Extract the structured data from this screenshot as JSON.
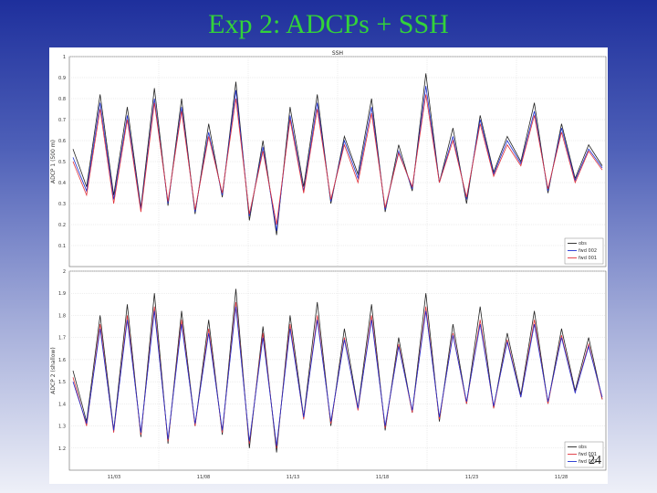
{
  "slide": {
    "title": "Exp 2: ADCPs + SSH",
    "page_number": "24"
  },
  "colors": {
    "title": "#33d23a",
    "obs": "#222222",
    "fwd002": "#1d2fd1",
    "fwd001": "#e0323a",
    "grid": "#dddddd"
  },
  "chart_data": [
    {
      "type": "line",
      "title": "SSH",
      "ylabel": "ADCP 1 (500 m)",
      "ylim": [
        0,
        1
      ],
      "yticks": [
        "0.1",
        "0.2",
        "0.3",
        "0.4",
        "0.5",
        "0.6",
        "0.7",
        "0.8",
        "0.9",
        "1"
      ],
      "xticks": [],
      "grid": true,
      "legend": "bottom-right",
      "legend_entries": [
        "obs",
        "fwd 002",
        "fwd 001"
      ],
      "series": [
        {
          "name": "obs",
          "color": "#222222",
          "values": [
            0.56,
            0.38,
            0.82,
            0.34,
            0.76,
            0.28,
            0.85,
            0.29,
            0.8,
            0.25,
            0.68,
            0.33,
            0.88,
            0.22,
            0.6,
            0.15,
            0.76,
            0.38,
            0.82,
            0.3,
            0.62,
            0.44,
            0.8,
            0.26,
            0.58,
            0.36,
            0.92,
            0.4,
            0.66,
            0.3,
            0.72,
            0.45,
            0.62,
            0.5,
            0.78,
            0.35,
            0.68,
            0.42,
            0.58,
            0.48
          ]
        },
        {
          "name": "fwd 002",
          "color": "#1d2fd1",
          "values": [
            0.52,
            0.36,
            0.78,
            0.32,
            0.72,
            0.27,
            0.8,
            0.3,
            0.76,
            0.26,
            0.64,
            0.34,
            0.84,
            0.24,
            0.57,
            0.17,
            0.72,
            0.36,
            0.78,
            0.31,
            0.6,
            0.42,
            0.76,
            0.27,
            0.55,
            0.37,
            0.86,
            0.4,
            0.62,
            0.32,
            0.7,
            0.44,
            0.6,
            0.49,
            0.74,
            0.36,
            0.66,
            0.41,
            0.56,
            0.47
          ]
        },
        {
          "name": "fwd 001",
          "color": "#e0323a",
          "values": [
            0.5,
            0.34,
            0.75,
            0.3,
            0.7,
            0.26,
            0.78,
            0.31,
            0.74,
            0.27,
            0.62,
            0.35,
            0.8,
            0.25,
            0.55,
            0.2,
            0.7,
            0.35,
            0.75,
            0.32,
            0.58,
            0.4,
            0.73,
            0.28,
            0.54,
            0.38,
            0.82,
            0.4,
            0.6,
            0.33,
            0.68,
            0.43,
            0.58,
            0.48,
            0.72,
            0.37,
            0.64,
            0.4,
            0.55,
            0.46
          ]
        }
      ]
    },
    {
      "type": "line",
      "title": "",
      "ylabel": "ADCP 2 (shallow)",
      "ylim": [
        1.1,
        2
      ],
      "yticks": [
        "1.2",
        "1.3",
        "1.4",
        "1.5",
        "1.6",
        "1.7",
        "1.8",
        "1.9",
        "2"
      ],
      "xticks": [
        "11/03",
        "11/08",
        "11/13",
        "11/18",
        "11/23",
        "11/28"
      ],
      "grid": true,
      "legend": "bottom-right",
      "legend_entries": [
        "obs",
        "fwd 001",
        "fwd 002"
      ],
      "series": [
        {
          "name": "obs",
          "color": "#222222",
          "values": [
            1.55,
            1.32,
            1.8,
            1.28,
            1.85,
            1.25,
            1.9,
            1.22,
            1.82,
            1.3,
            1.78,
            1.26,
            1.92,
            1.2,
            1.75,
            1.18,
            1.8,
            1.34,
            1.86,
            1.3,
            1.74,
            1.38,
            1.85,
            1.28,
            1.7,
            1.36,
            1.9,
            1.32,
            1.76,
            1.4,
            1.84,
            1.38,
            1.72,
            1.44,
            1.82,
            1.4,
            1.74,
            1.46,
            1.7,
            1.42
          ]
        },
        {
          "name": "fwd 001",
          "color": "#e0323a",
          "values": [
            1.52,
            1.3,
            1.76,
            1.27,
            1.8,
            1.26,
            1.84,
            1.23,
            1.78,
            1.3,
            1.74,
            1.27,
            1.86,
            1.22,
            1.72,
            1.2,
            1.76,
            1.33,
            1.8,
            1.31,
            1.7,
            1.37,
            1.8,
            1.29,
            1.67,
            1.36,
            1.84,
            1.33,
            1.72,
            1.4,
            1.78,
            1.38,
            1.69,
            1.43,
            1.78,
            1.4,
            1.71,
            1.45,
            1.67,
            1.42
          ]
        },
        {
          "name": "fwd 002",
          "color": "#1d2fd1",
          "values": [
            1.5,
            1.31,
            1.74,
            1.28,
            1.78,
            1.27,
            1.82,
            1.24,
            1.76,
            1.31,
            1.72,
            1.28,
            1.84,
            1.23,
            1.7,
            1.21,
            1.74,
            1.34,
            1.78,
            1.32,
            1.69,
            1.38,
            1.78,
            1.3,
            1.66,
            1.37,
            1.82,
            1.34,
            1.71,
            1.41,
            1.76,
            1.39,
            1.68,
            1.43,
            1.76,
            1.41,
            1.7,
            1.45,
            1.66,
            1.43
          ]
        }
      ]
    }
  ]
}
